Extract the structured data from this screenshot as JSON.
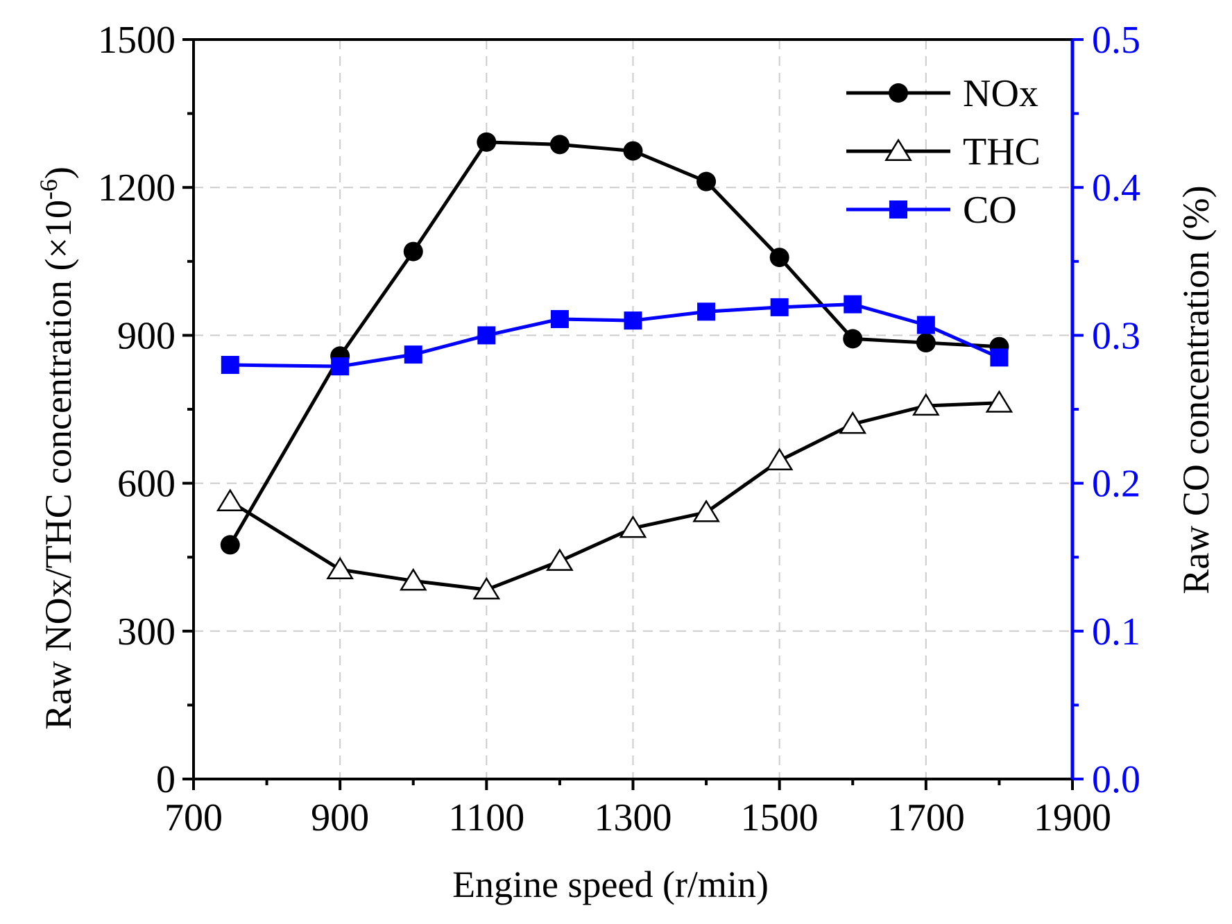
{
  "chart_data": {
    "type": "line",
    "xlabel": "Engine speed (r/min)",
    "ylabel_left_main": "Raw NOx/THC  concentration (×10",
    "ylabel_left_exp": "-6",
    "ylabel_left_close": ")",
    "ylabel_right": "Raw CO concentration (%)",
    "xlim": [
      700,
      1900
    ],
    "ylim_left": [
      0,
      1500
    ],
    "ylim_right": [
      0.0,
      0.5
    ],
    "x_ticks": [
      "700",
      "900",
      "1100",
      "1300",
      "1500",
      "1700",
      "1900"
    ],
    "y_left_ticks": [
      "0",
      "300",
      "600",
      "900",
      "1200",
      "1500"
    ],
    "y_right_ticks": [
      "0.0",
      "0.1",
      "0.2",
      "0.3",
      "0.4",
      "0.5"
    ],
    "x_tick_values": [
      700,
      900,
      1100,
      1300,
      1500,
      1700,
      1900
    ],
    "y_left_tick_values": [
      0,
      300,
      600,
      900,
      1200,
      1500
    ],
    "y_right_tick_values": [
      0.0,
      0.1,
      0.2,
      0.3,
      0.4,
      0.5
    ],
    "legend_position": "top-right",
    "grid": true,
    "colors": {
      "axis": "#000000",
      "right_axis": "#0000ff",
      "grid": "#cccccc"
    },
    "x": [
      750,
      900,
      1000,
      1100,
      1200,
      1300,
      1400,
      1500,
      1600,
      1700,
      1800
    ],
    "series": [
      {
        "name": "NOx",
        "axis": "left",
        "marker": "circle",
        "color": "#000000",
        "values": [
          475,
          858,
          1070,
          1292,
          1287,
          1274,
          1212,
          1058,
          893,
          885,
          877
        ]
      },
      {
        "name": "THC",
        "axis": "left",
        "marker": "triangle",
        "color": "#000000",
        "values": [
          563,
          425,
          402,
          384,
          442,
          509,
          541,
          646,
          720,
          757,
          763
        ]
      },
      {
        "name": "CO",
        "axis": "right",
        "marker": "square",
        "color": "#0000ff",
        "values": [
          0.28,
          0.279,
          0.287,
          0.3,
          0.311,
          0.31,
          0.316,
          0.319,
          0.321,
          0.307,
          0.285
        ]
      }
    ]
  }
}
